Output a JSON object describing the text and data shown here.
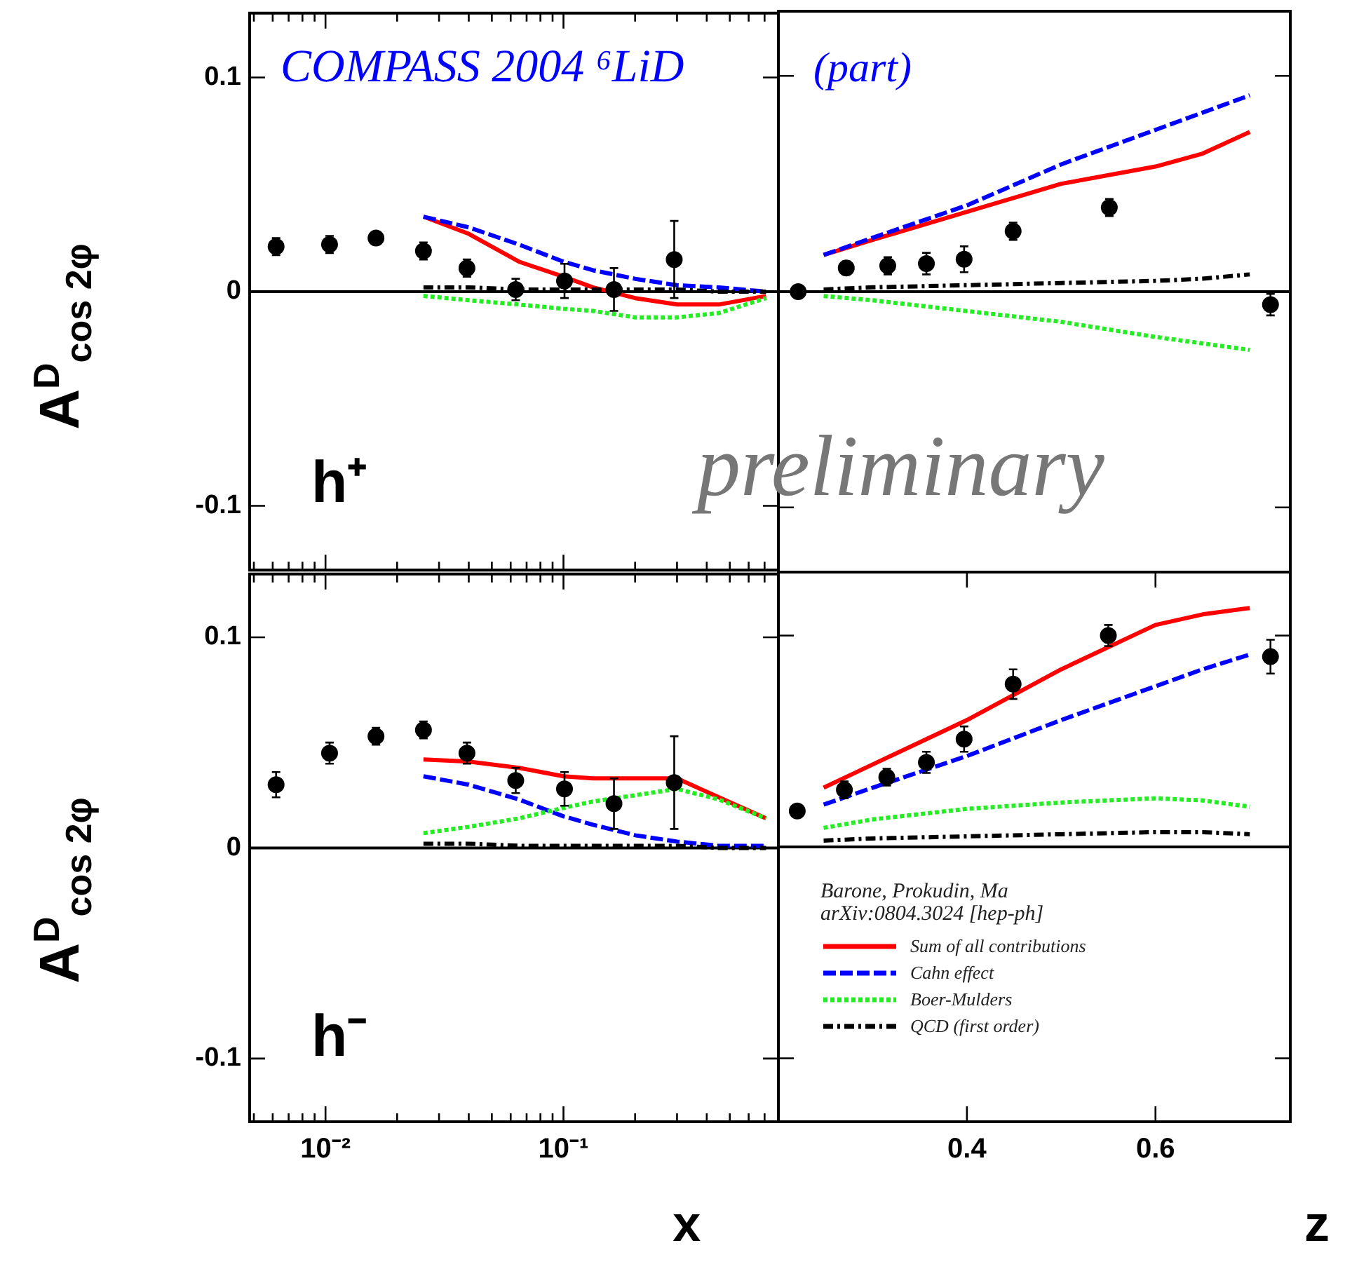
{
  "chart_data": [
    {
      "type": "scatter",
      "log": "x",
      "xlim": [
        0.0048,
        0.8
      ],
      "ylim": [
        -0.13,
        0.13
      ],
      "tick_labels": "y",
      "ylabel": "A$^{D}$$_{cos 2φ}$",
      "xticks": [
        {
          "value": 0.005,
          "label": null
        },
        {
          "value": 0.006,
          "label": null
        },
        {
          "value": 0.007,
          "label": null
        },
        {
          "value": 0.008,
          "label": null
        },
        {
          "value": 0.009,
          "label": null
        },
        {
          "value": 0.01,
          "label": null
        },
        {
          "value": 0.02,
          "label": null
        },
        {
          "value": 0.03,
          "label": null
        },
        {
          "value": 0.04,
          "label": null
        },
        {
          "value": 0.05,
          "label": null
        },
        {
          "value": 0.06,
          "label": null
        },
        {
          "value": 0.07,
          "label": null
        },
        {
          "value": 0.08,
          "label": null
        },
        {
          "value": 0.09,
          "label": null
        },
        {
          "value": 0.1,
          "label": null
        },
        {
          "value": 0.2,
          "label": null
        },
        {
          "value": 0.3,
          "label": null
        },
        {
          "value": 0.4,
          "label": null
        },
        {
          "value": 0.5,
          "label": null
        },
        {
          "value": 0.6,
          "label": null
        },
        {
          "value": 0.7,
          "label": null
        }
      ],
      "yticks": [
        -0.1,
        0,
        0.1
      ],
      "ref_lines": [
        {
          "axis": "y",
          "value": 0,
          "color": "#000000"
        }
      ],
      "annotations": [
        "COMPASS 2004 ⁶LiD",
        "h⁺"
      ],
      "series": [
        {
          "type": "scatter",
          "marker": "circle",
          "color": "#000000",
          "x": [
            0.0062,
            0.0104,
            0.0163,
            0.0258,
            0.0393,
            0.063,
            0.101,
            0.163,
            0.292
          ],
          "values": [
            0.021,
            0.022,
            0.025,
            0.019,
            0.011,
            0.001,
            0.005,
            0.001,
            0.015
          ],
          "errors": [
            0.004,
            0.004,
            0.003,
            0.004,
            0.004,
            0.005,
            0.008,
            0.01,
            0.018
          ]
        },
        {
          "type": "line",
          "marker": "none",
          "line_style": "solid",
          "color": "#ff0000",
          "x": [
            0.0258,
            0.04,
            0.065,
            0.1,
            0.133,
            0.2,
            0.3,
            0.45,
            0.71
          ],
          "values": [
            0.035,
            0.027,
            0.014,
            0.007,
            0.002,
            -0.003,
            -0.006,
            -0.006,
            -0.002
          ]
        },
        {
          "type": "line",
          "marker": "none",
          "line_style": "dashed",
          "color": "#0000ff",
          "x": [
            0.0258,
            0.04,
            0.065,
            0.1,
            0.133,
            0.2,
            0.3,
            0.45,
            0.71
          ],
          "values": [
            0.035,
            0.03,
            0.022,
            0.014,
            0.01,
            0.006,
            0.003,
            0.002,
            0
          ]
        },
        {
          "type": "line",
          "marker": "none",
          "line_style": "dotted",
          "color": "#22ee22",
          "x": [
            0.0258,
            0.04,
            0.065,
            0.1,
            0.133,
            0.2,
            0.3,
            0.45,
            0.71
          ],
          "values": [
            -0.002,
            -0.004,
            -0.006,
            -0.008,
            -0.009,
            -0.012,
            -0.012,
            -0.01,
            -0.003
          ]
        },
        {
          "type": "line",
          "marker": "none",
          "line_style": "dashdot",
          "color": "#000000",
          "x": [
            0.0258,
            0.04,
            0.065,
            0.1,
            0.133,
            0.2,
            0.3,
            0.45,
            0.71
          ],
          "values": [
            0.002,
            0.002,
            0.001,
            0.001,
            0.001,
            0.001,
            0.001,
            0,
            0
          ]
        }
      ]
    },
    {
      "type": "scatter",
      "xlim": [
        0.2,
        0.743
      ],
      "ylim": [
        -0.13,
        0.13
      ],
      "tick_labels": false,
      "yticks": [
        -0.1,
        0,
        0.1
      ],
      "ref_lines": [
        {
          "axis": "y",
          "value": 0,
          "color": "#000000"
        }
      ],
      "annotations": [
        "(part)",
        "preliminary"
      ],
      "series": [
        {
          "type": "scatter",
          "marker": "circle",
          "color": "#000000",
          "x": [
            0.221,
            0.272,
            0.316,
            0.357,
            0.397,
            0.449,
            0.551,
            0.722
          ],
          "values": [
            0,
            0.011,
            0.012,
            0.013,
            0.015,
            0.028,
            0.039,
            -0.006
          ],
          "errors": [
            0.001,
            0.003,
            0.004,
            0.005,
            0.006,
            0.004,
            0.004,
            0.005
          ]
        },
        {
          "type": "line",
          "marker": "none",
          "line_style": "solid",
          "color": "#ff0000",
          "x": [
            0.248,
            0.3,
            0.4,
            0.5,
            0.6,
            0.65,
            0.7
          ],
          "values": [
            0.017,
            0.024,
            0.037,
            0.05,
            0.058,
            0.064,
            0.074
          ]
        },
        {
          "type": "line",
          "marker": "none",
          "line_style": "dashed",
          "color": "#0000ff",
          "x": [
            0.248,
            0.3,
            0.4,
            0.5,
            0.6,
            0.65,
            0.7
          ],
          "values": [
            0.017,
            0.025,
            0.04,
            0.059,
            0.075,
            0.083,
            0.091
          ]
        },
        {
          "type": "line",
          "marker": "none",
          "line_style": "dotted",
          "color": "#22ee22",
          "x": [
            0.248,
            0.3,
            0.4,
            0.5,
            0.6,
            0.65,
            0.7
          ],
          "values": [
            -0.002,
            -0.004,
            -0.009,
            -0.014,
            -0.021,
            -0.024,
            -0.027
          ]
        },
        {
          "type": "line",
          "marker": "none",
          "line_style": "dashdot",
          "color": "#000000",
          "x": [
            0.248,
            0.3,
            0.4,
            0.5,
            0.6,
            0.65,
            0.7
          ],
          "values": [
            0.001,
            0.002,
            0.003,
            0.004,
            0.005,
            0.006,
            0.008
          ]
        }
      ]
    },
    {
      "type": "scatter",
      "log": "x",
      "xlim": [
        0.0048,
        0.8
      ],
      "ylim": [
        -0.13,
        0.13
      ],
      "ylabel": "A$^{D}$$_{cos 2φ}$",
      "xlabel": "x",
      "xticks": [
        {
          "value": 0.005,
          "label": null
        },
        {
          "value": 0.006,
          "label": null
        },
        {
          "value": 0.007,
          "label": null
        },
        {
          "value": 0.008,
          "label": null
        },
        {
          "value": 0.009,
          "label": null
        },
        {
          "value": 0.01,
          "label": "10⁻²"
        },
        {
          "value": 0.02,
          "label": null
        },
        {
          "value": 0.03,
          "label": null
        },
        {
          "value": 0.04,
          "label": null
        },
        {
          "value": 0.05,
          "label": null
        },
        {
          "value": 0.06,
          "label": null
        },
        {
          "value": 0.07,
          "label": null
        },
        {
          "value": 0.08,
          "label": null
        },
        {
          "value": 0.09,
          "label": null
        },
        {
          "value": 0.1,
          "label": "10⁻¹"
        },
        {
          "value": 0.2,
          "label": null
        },
        {
          "value": 0.3,
          "label": null
        },
        {
          "value": 0.4,
          "label": null
        },
        {
          "value": 0.5,
          "label": null
        },
        {
          "value": 0.6,
          "label": null
        },
        {
          "value": 0.7,
          "label": null
        }
      ],
      "yticks": [
        -0.1,
        0,
        0.1
      ],
      "ref_lines": [
        {
          "axis": "y",
          "value": 0,
          "color": "#000000"
        }
      ],
      "annotations": [
        "h⁻"
      ],
      "series": [
        {
          "type": "scatter",
          "marker": "circle",
          "color": "#000000",
          "x": [
            0.0062,
            0.0104,
            0.0163,
            0.0258,
            0.0393,
            0.063,
            0.101,
            0.163,
            0.292
          ],
          "values": [
            0.03,
            0.045,
            0.053,
            0.056,
            0.045,
            0.032,
            0.028,
            0.021,
            0.031
          ],
          "errors": [
            0.006,
            0.005,
            0.004,
            0.004,
            0.005,
            0.006,
            0.008,
            0.012,
            0.022
          ]
        },
        {
          "type": "line",
          "marker": "none",
          "line_style": "solid",
          "color": "#ff0000",
          "x": [
            0.0258,
            0.04,
            0.065,
            0.1,
            0.133,
            0.2,
            0.3,
            0.45,
            0.71
          ],
          "values": [
            0.042,
            0.041,
            0.038,
            0.034,
            0.033,
            0.033,
            0.033,
            0.024,
            0.014
          ]
        },
        {
          "type": "line",
          "marker": "none",
          "line_style": "dashed",
          "color": "#0000ff",
          "x": [
            0.0258,
            0.04,
            0.065,
            0.1,
            0.133,
            0.2,
            0.3,
            0.45,
            0.71
          ],
          "values": [
            0.034,
            0.03,
            0.023,
            0.015,
            0.011,
            0.006,
            0.003,
            0.001,
            0.001
          ]
        },
        {
          "type": "line",
          "marker": "none",
          "line_style": "dotted",
          "color": "#22ee22",
          "x": [
            0.0258,
            0.04,
            0.065,
            0.1,
            0.133,
            0.2,
            0.3,
            0.45,
            0.71
          ],
          "values": [
            0.007,
            0.01,
            0.014,
            0.019,
            0.022,
            0.025,
            0.028,
            0.023,
            0.014
          ]
        },
        {
          "type": "line",
          "marker": "none",
          "line_style": "dashdot",
          "color": "#000000",
          "x": [
            0.0258,
            0.04,
            0.065,
            0.1,
            0.133,
            0.2,
            0.3,
            0.45,
            0.71
          ],
          "values": [
            0.002,
            0.002,
            0.001,
            0.001,
            0.001,
            0.001,
            0.001,
            0,
            0
          ]
        }
      ]
    },
    {
      "type": "scatter",
      "xlim": [
        0.2,
        0.743
      ],
      "ylim": [
        -0.13,
        0.13
      ],
      "tick_labels": "x",
      "xlabel": "z",
      "xticks": [
        0.4,
        0.6
      ],
      "yticks": [
        -0.1,
        0,
        0.1
      ],
      "ref_lines": [
        {
          "axis": "y",
          "value": 0,
          "color": "#000000"
        }
      ],
      "legend": "bottom left",
      "legend_title": "Barone, Prokudin, Ma\narXiv:0804.3024 [hep-ph]",
      "series": [
        {
          "type": "scatter",
          "marker": "circle",
          "color": "#000000",
          "x": [
            0.22,
            0.27,
            0.315,
            0.357,
            0.397,
            0.449,
            0.55,
            0.722
          ],
          "values": [
            0.017,
            0.027,
            0.033,
            0.04,
            0.051,
            0.077,
            0.1,
            0.09
          ],
          "errors": [
            null,
            0.004,
            0.004,
            0.005,
            0.006,
            0.007,
            0.005,
            0.008
          ]
        },
        {
          "name": "Sum of all contributions",
          "type": "line",
          "marker": "none",
          "line_style": "solid",
          "color": "#ff0000",
          "x": [
            0.248,
            0.3,
            0.4,
            0.5,
            0.6,
            0.65,
            0.7
          ],
          "values": [
            0.028,
            0.039,
            0.06,
            0.084,
            0.105,
            0.11,
            0.113
          ]
        },
        {
          "name": "Cahn effect",
          "type": "line",
          "marker": "none",
          "line_style": "dashed",
          "color": "#0000ff",
          "x": [
            0.248,
            0.3,
            0.4,
            0.5,
            0.6,
            0.65,
            0.7
          ],
          "values": [
            0.02,
            0.028,
            0.043,
            0.06,
            0.076,
            0.084,
            0.091
          ]
        },
        {
          "name": "Boer-Mulders",
          "type": "line",
          "marker": "none",
          "line_style": "dotted",
          "color": "#22ee22",
          "x": [
            0.248,
            0.3,
            0.4,
            0.5,
            0.6,
            0.65,
            0.7
          ],
          "values": [
            0.009,
            0.013,
            0.018,
            0.021,
            0.023,
            0.022,
            0.019
          ]
        },
        {
          "name": "QCD (first order)",
          "type": "line",
          "marker": "none",
          "line_style": "dashdot",
          "color": "#000000",
          "x": [
            0.248,
            0.3,
            0.4,
            0.5,
            0.6,
            0.65,
            0.7
          ],
          "values": [
            0.003,
            0.004,
            0.005,
            0.006,
            0.007,
            0.007,
            0.006
          ]
        }
      ]
    }
  ]
}
